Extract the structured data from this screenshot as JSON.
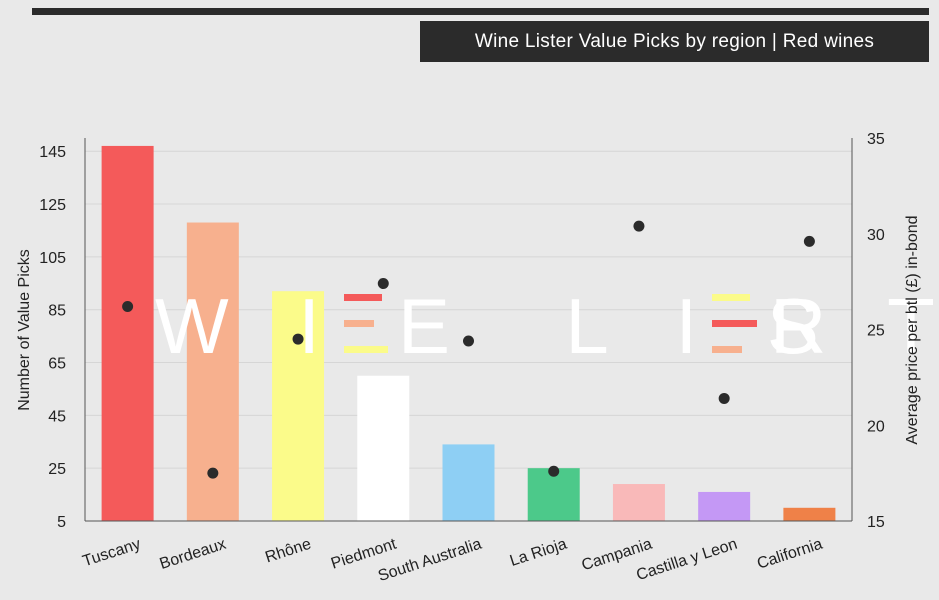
{
  "title": "Wine Lister Value Picks by region | Red wines",
  "watermark": {
    "text": "WINE LISTER",
    "left_part": "W I",
    "middle_part": "E  L I S T",
    "right_part": "R",
    "color": "#ffffff"
  },
  "chart_data": {
    "type": "bar",
    "title": "Wine Lister Value Picks by region | Red wines",
    "categories": [
      "Tuscany",
      "Bordeaux",
      "Rhône",
      "Piedmont",
      "South Australia",
      "La Rioja",
      "Campania",
      "Castilla y Leon",
      "California"
    ],
    "series": [
      {
        "name": "Number of Value Picks",
        "type": "bar",
        "axis": "left",
        "values": [
          147,
          118,
          92,
          60,
          34,
          25,
          19,
          16,
          10
        ],
        "colors": [
          "#f45a5a",
          "#f7b08e",
          "#fbfb8a",
          "#ffffff",
          "#8ecff4",
          "#4cc98a",
          "#f9b9b9",
          "#c498f5",
          "#ef8148"
        ]
      },
      {
        "name": "Average price per btl (£) in-bond",
        "type": "scatter",
        "axis": "right",
        "values": [
          26.2,
          17.5,
          24.5,
          27.4,
          24.4,
          17.6,
          30.4,
          21.4,
          29.6
        ],
        "color": "#2b2b2b"
      }
    ],
    "ylabel": "Number of Value Picks",
    "y2label": "Average price per btl (£) in-bond",
    "ylim": [
      5,
      150
    ],
    "y2lim": [
      15,
      35
    ],
    "yticks": [
      5,
      25,
      45,
      65,
      85,
      105,
      125,
      145
    ],
    "y2ticks": [
      15,
      20,
      25,
      30,
      35
    ],
    "grid": true,
    "legend": "none"
  }
}
